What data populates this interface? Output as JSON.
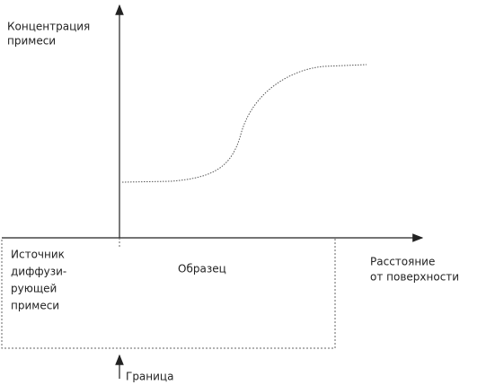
{
  "y_axis_label": [
    "Концентрация",
    "примеси"
  ],
  "x_axis_label": [
    "Расстояние",
    "от поверхности"
  ],
  "source_label": [
    "Источник",
    "диффузи-",
    "рующей",
    "примеси"
  ],
  "sample_label": "Образец",
  "boundary_label": "Граница"
}
